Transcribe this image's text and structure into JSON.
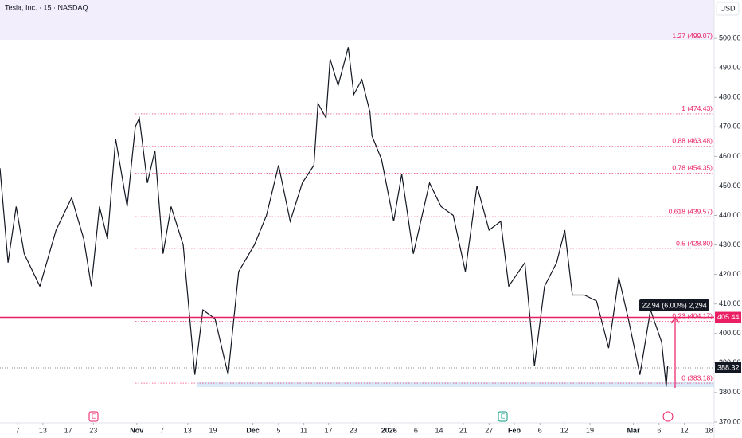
{
  "chart_data": {
    "type": "line",
    "title": "Tesla, Inc. · 15 · NASDAQ",
    "currency": "USD",
    "color": "#131722",
    "x": [
      -3.5,
      -1.9,
      -0.3,
      1.3,
      4.4,
      7.6,
      10.7,
      13.1,
      14.6,
      16.2,
      17.8,
      19.4,
      21.7,
      23.3,
      24.1,
      25.7,
      27.2,
      28.8,
      30.4,
      32.8,
      35.1,
      36.7,
      39.1,
      41.7,
      43.8,
      46.9,
      49.3,
      51.7,
      54,
      56.4,
      58.7,
      59.5,
      61.1,
      61.9,
      63.5,
      65.5,
      66.6,
      68.2,
      69.8,
      70.2,
      72.1,
      74.5,
      76.1,
      78.4,
      81.6,
      83.9,
      86.3,
      88.7,
      91,
      93.4,
      95.7,
      97.3,
      100.5,
      102.4,
      104.4,
      106.8,
      108.4,
      109.9,
      112.3,
      114.7,
      117.1,
      119.1,
      121,
      123.3,
      125.4,
      127.6,
      128.5,
      128.8
    ],
    "values": [
      456,
      424,
      443,
      427,
      416,
      435,
      446,
      432,
      416,
      443,
      432,
      466,
      443,
      470,
      473,
      451,
      462,
      427,
      443,
      430,
      386,
      408,
      405,
      386,
      421,
      430,
      440,
      457,
      438,
      451,
      457,
      478,
      473,
      493,
      484,
      497,
      481,
      486,
      475,
      467,
      459,
      438,
      454,
      427,
      451,
      443,
      440,
      421,
      450,
      435,
      438,
      416,
      424,
      389,
      416,
      424,
      435,
      413,
      413,
      411,
      395,
      419,
      405,
      386,
      408,
      397,
      382,
      389
    ],
    "xlim": [
      -3.5,
      138
    ],
    "ylim": [
      367,
      513
    ],
    "xticks": [
      {
        "value": 0,
        "label": "7"
      },
      {
        "value": 5,
        "label": "13"
      },
      {
        "value": 10,
        "label": "17"
      },
      {
        "value": 15,
        "label": "23"
      },
      {
        "value": 23.6,
        "label": "Nov"
      },
      {
        "value": 28.6,
        "label": "7"
      },
      {
        "value": 33.7,
        "label": "13"
      },
      {
        "value": 38.7,
        "label": "19"
      },
      {
        "value": 46.6,
        "label": "Dec"
      },
      {
        "value": 51.7,
        "label": "5"
      },
      {
        "value": 56.7,
        "label": "11"
      },
      {
        "value": 61.6,
        "label": "17"
      },
      {
        "value": 66.5,
        "label": "23"
      },
      {
        "value": 73.6,
        "label": "2026"
      },
      {
        "value": 78.9,
        "label": "6"
      },
      {
        "value": 83.5,
        "label": "14"
      },
      {
        "value": 88.3,
        "label": "21"
      },
      {
        "value": 93.4,
        "label": "27"
      },
      {
        "value": 98.4,
        "label": "Feb"
      },
      {
        "value": 103.5,
        "label": "6"
      },
      {
        "value": 108.3,
        "label": "12"
      },
      {
        "value": 113.4,
        "label": "19"
      },
      {
        "value": 122,
        "label": "Mar"
      },
      {
        "value": 127.1,
        "label": "6"
      },
      {
        "value": 132.1,
        "label": "12"
      },
      {
        "value": 137,
        "label": "18"
      }
    ],
    "yticks": [
      {
        "value": 370,
        "label": "370.00"
      },
      {
        "value": 380,
        "label": "380.00"
      },
      {
        "value": 390,
        "label": "390.00"
      },
      {
        "value": 400,
        "label": "400.00"
      },
      {
        "value": 410,
        "label": "410.00"
      },
      {
        "value": 420,
        "label": "420.00"
      },
      {
        "value": 430,
        "label": "430.00"
      },
      {
        "value": 440,
        "label": "440.00"
      },
      {
        "value": 450,
        "label": "450.00"
      },
      {
        "value": 460,
        "label": "460.00"
      },
      {
        "value": 470,
        "label": "470.00"
      },
      {
        "value": 480,
        "label": "480.00"
      },
      {
        "value": 490,
        "label": "490.00"
      },
      {
        "value": 500,
        "label": "500.00"
      }
    ],
    "fib_levels": [
      {
        "value": 499.07,
        "label": "1.27 (499.07)"
      },
      {
        "value": 474.43,
        "label": "1 (474.43)"
      },
      {
        "value": 463.48,
        "label": "0.88 (463.48)"
      },
      {
        "value": 454.35,
        "label": "0.78 (454.35)"
      },
      {
        "value": 439.57,
        "label": "0.618 (439.57)"
      },
      {
        "value": 428.8,
        "label": "0.5 (428.80)"
      },
      {
        "value": 404.17,
        "label": "0.23 (404.17)"
      },
      {
        "value": 383.18,
        "label": "0 (383.18)"
      }
    ],
    "hline": 405.44,
    "last_price": 388.32,
    "measure_label": "22.94 (6.00%) 2,294"
  }
}
